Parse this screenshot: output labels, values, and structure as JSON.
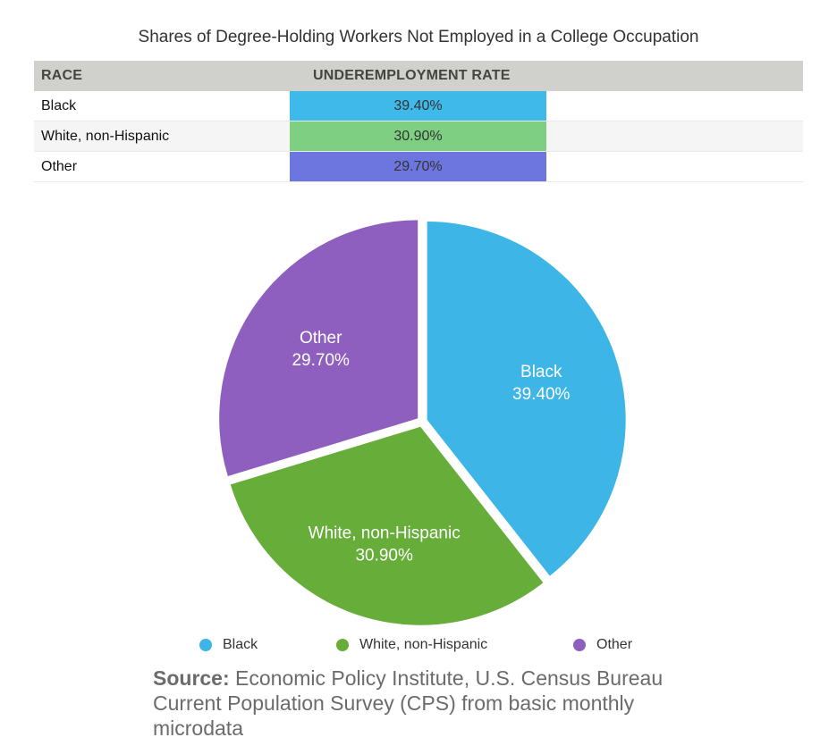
{
  "chart_data": {
    "type": "pie",
    "title": "Shares of Degree-Holding Workers Not Employed in a College Occupation",
    "table": {
      "columns": [
        "RACE",
        "UNDEREMPLOYMENT RATE"
      ],
      "rows": [
        {
          "race": "Black",
          "rate": "39.40%"
        },
        {
          "race": "White, non-Hispanic",
          "rate": "30.90%"
        },
        {
          "race": "Other",
          "rate": "29.70%"
        }
      ]
    },
    "slices": [
      {
        "label": "Black",
        "value": 39.4,
        "value_label": "39.40%",
        "color": "#3db5e6",
        "table_color": "#3fb9e9"
      },
      {
        "label": "White, non-Hispanic",
        "value": 30.9,
        "value_label": "30.90%",
        "color": "#67ad3a",
        "table_color": "#7fcf83"
      },
      {
        "label": "Other",
        "value": 29.7,
        "value_label": "29.70%",
        "color": "#8f5fbf",
        "table_color": "#6c76de"
      }
    ],
    "legend": [
      "Black",
      "White, non-Hispanic",
      "Other"
    ],
    "legend_position": "bottom"
  },
  "source": {
    "prefix": "Source:",
    "text": "Economic Policy Institute, U.S. Census Bureau Current Population Survey (CPS) from basic monthly microdata"
  }
}
